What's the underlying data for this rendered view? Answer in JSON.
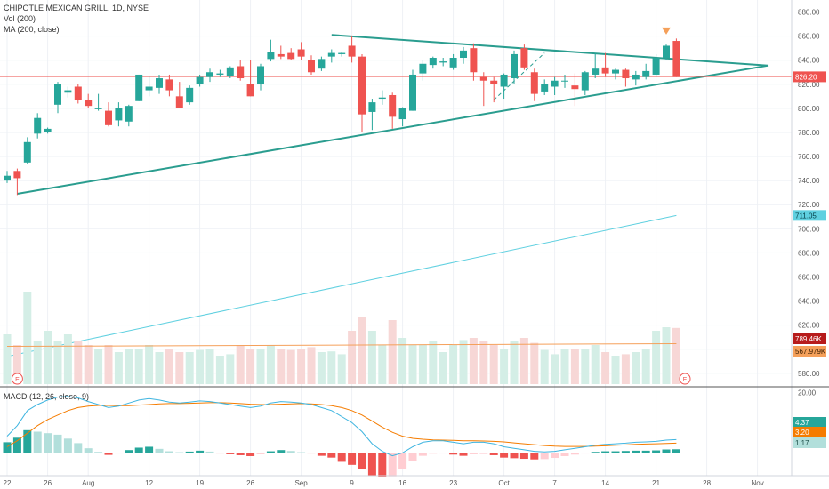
{
  "legend": {
    "title": "CHIPOTLE MEXICAN GRILL, 1D, NYSE",
    "volume": "Vol (200)",
    "ma": "MA (200, close)"
  },
  "macd": {
    "label": "MACD (12, 26, close, 9)",
    "values": {
      "macd": "4.37",
      "signal": "3.20",
      "hist": "1.17"
    }
  },
  "badges": {
    "last_price": "826.20",
    "ma_value": "711.05",
    "volume": "789.46K",
    "volume_ma": "567.979K"
  },
  "earnings_markers": [
    "E",
    "E"
  ],
  "colors": {
    "up": "#26a69a",
    "down": "#ef5350",
    "up_vol": "#d4eee6",
    "down_vol": "#f7d7d6",
    "ma": "#5fd0e0",
    "vol_ma": "#f5a05a",
    "trend": "#2a9d8f",
    "macd_line": "#3fb5e0",
    "signal_line": "#f57c00",
    "price_line": "#ef5350",
    "grid": "#eef1f5"
  },
  "chart_data": [
    {
      "type": "candlestick",
      "title": "CHIPOTLE MEXICAN GRILL, 1D, NYSE",
      "y_ticks": [
        "880.00",
        "860.00",
        "840.00",
        "820.00",
        "800.00",
        "780.00",
        "760.00",
        "740.00",
        "720.00",
        "700.00",
        "680.00",
        "660.00",
        "640.00",
        "620.00",
        "600.00",
        "580.00"
      ],
      "ylim": [
        571,
        890
      ],
      "x_ticks": [
        "22",
        "26",
        "Aug",
        "12",
        "19",
        "26",
        "Sep",
        "9",
        "16",
        "23",
        "Oct",
        "7",
        "14",
        "21",
        "28",
        "Nov"
      ],
      "x_tick_index": [
        0,
        4,
        8,
        14,
        19,
        24,
        29,
        34,
        39,
        44,
        49,
        54,
        59,
        64,
        69,
        74
      ],
      "candles": [
        [
          740,
          748,
          738,
          744
        ],
        [
          748,
          750,
          728,
          742
        ],
        [
          755,
          776,
          754,
          772
        ],
        [
          779,
          796,
          775,
          792
        ],
        [
          780,
          784,
          779,
          783
        ],
        [
          803,
          822,
          796,
          820
        ],
        [
          813,
          818,
          809,
          815
        ],
        [
          818,
          820,
          804,
          807
        ],
        [
          807,
          812,
          800,
          802
        ],
        [
          800,
          812,
          798,
          800
        ],
        [
          798,
          805,
          785,
          786
        ],
        [
          790,
          805,
          785,
          800
        ],
        [
          789,
          803,
          785,
          802
        ],
        [
          806,
          828,
          806,
          828
        ],
        [
          815,
          827,
          810,
          818
        ],
        [
          817,
          828,
          812,
          825
        ],
        [
          824,
          828,
          810,
          815
        ],
        [
          810,
          822,
          800,
          800
        ],
        [
          805,
          819,
          803,
          817
        ],
        [
          820,
          828,
          818,
          826
        ],
        [
          826,
          833,
          822,
          830
        ],
        [
          828,
          832,
          826,
          829
        ],
        [
          827,
          835,
          825,
          834
        ],
        [
          835,
          840,
          823,
          825
        ],
        [
          820,
          840,
          810,
          810
        ],
        [
          820,
          837,
          815,
          835
        ],
        [
          841,
          857,
          839,
          847
        ],
        [
          845,
          852,
          841,
          843
        ],
        [
          846,
          850,
          840,
          841
        ],
        [
          849,
          855,
          840,
          843
        ],
        [
          840,
          844,
          828,
          830
        ],
        [
          833,
          843,
          831,
          841
        ],
        [
          843,
          849,
          838,
          846
        ],
        [
          845,
          847,
          843,
          846
        ],
        [
          852,
          860,
          838,
          843
        ],
        [
          843,
          845,
          780,
          795
        ],
        [
          797,
          808,
          782,
          805
        ],
        [
          808,
          815,
          803,
          809
        ],
        [
          811,
          813,
          783,
          793
        ],
        [
          791,
          801,
          785,
          800
        ],
        [
          798,
          832,
          798,
          828
        ],
        [
          829,
          840,
          823,
          837
        ],
        [
          836,
          843,
          833,
          842
        ],
        [
          838,
          842,
          835,
          839
        ],
        [
          834,
          845,
          832,
          842
        ],
        [
          842,
          851,
          837,
          848
        ],
        [
          850,
          854,
          823,
          830
        ],
        [
          826,
          830,
          802,
          823
        ],
        [
          823,
          826,
          805,
          820
        ],
        [
          818,
          829,
          808,
          828
        ],
        [
          825,
          848,
          820,
          845
        ],
        [
          850,
          853,
          832,
          834
        ],
        [
          830,
          833,
          806,
          812
        ],
        [
          814,
          824,
          811,
          820
        ],
        [
          818,
          826,
          811,
          823
        ],
        [
          823,
          828,
          817,
          823
        ],
        [
          819,
          829,
          802,
          816
        ],
        [
          815,
          831,
          811,
          830
        ],
        [
          828,
          846,
          825,
          833
        ],
        [
          834,
          846,
          826,
          829
        ],
        [
          829,
          833,
          824,
          832
        ],
        [
          832,
          833,
          818,
          825
        ],
        [
          824,
          831,
          819,
          828
        ],
        [
          826,
          837,
          824,
          831
        ],
        [
          828,
          845,
          826,
          842
        ],
        [
          842,
          853,
          840,
          852
        ],
        [
          856,
          858,
          826,
          826
        ]
      ]
    },
    {
      "type": "line",
      "name": "MA (200, close)",
      "start_value": 594,
      "end_value": 711.05
    },
    {
      "type": "bar",
      "name": "Vol (200)",
      "values": [
        0.7,
        0.55,
        1.3,
        0.6,
        0.75,
        0.6,
        0.7,
        0.6,
        0.55,
        0.5,
        0.55,
        0.45,
        0.5,
        0.5,
        0.55,
        0.45,
        0.5,
        0.45,
        0.45,
        0.48,
        0.5,
        0.4,
        0.42,
        0.55,
        0.5,
        0.5,
        0.55,
        0.5,
        0.48,
        0.5,
        0.52,
        0.45,
        0.46,
        0.42,
        0.75,
        0.95,
        0.75,
        0.55,
        0.9,
        0.65,
        0.55,
        0.55,
        0.6,
        0.45,
        0.55,
        0.62,
        0.65,
        0.6,
        0.55,
        0.5,
        0.6,
        0.65,
        0.58,
        0.48,
        0.42,
        0.5,
        0.5,
        0.5,
        0.55,
        0.45,
        0.4,
        0.42,
        0.45,
        0.5,
        0.75,
        0.8,
        0.79
      ],
      "ma": 0.568
    },
    {
      "type": "macd",
      "ylim": [
        -7,
        21
      ],
      "y_ticks": [
        "20.00"
      ],
      "macd": [
        5.5,
        9,
        14,
        16,
        17.5,
        18.5,
        18.7,
        18.2,
        17,
        16,
        15,
        15.5,
        16.5,
        17.5,
        18,
        17.5,
        16.8,
        16.5,
        16.8,
        17.2,
        17,
        16.5,
        16,
        15.5,
        15,
        15.5,
        16.5,
        17,
        16.8,
        16.5,
        16,
        15,
        14,
        12,
        10,
        7,
        3,
        0.5,
        -1,
        0,
        2,
        3.5,
        4,
        4,
        3.5,
        3,
        3.5,
        3.5,
        3,
        2,
        1.5,
        1,
        0.5,
        0.3,
        0.5,
        1,
        1.5,
        2,
        2.5,
        2.8,
        3,
        3.2,
        3.5,
        3.6,
        3.8,
        4.2,
        4.37
      ],
      "signal": [
        2,
        4,
        6.5,
        9,
        11,
        12.5,
        14,
        15,
        15.5,
        15.7,
        15.7,
        15.6,
        15.6,
        15.8,
        16,
        16.2,
        16.3,
        16.3,
        16.4,
        16.5,
        16.6,
        16.6,
        16.5,
        16.3,
        16.1,
        16,
        16,
        16.1,
        16.2,
        16.3,
        16.2,
        16,
        15.6,
        15,
        14,
        12.5,
        10.5,
        8.5,
        6.8,
        5.5,
        4.8,
        4.5,
        4.3,
        4.2,
        4.1,
        4,
        4,
        3.9,
        3.8,
        3.6,
        3.3,
        3,
        2.7,
        2.4,
        2.2,
        2.1,
        2.1,
        2.1,
        2.2,
        2.3,
        2.5,
        2.6,
        2.8,
        2.9,
        3,
        3.1,
        3.2
      ],
      "hist": [
        3.5,
        5,
        7.5,
        7,
        6.5,
        6,
        4.7,
        3.2,
        1.5,
        0.3,
        -0.7,
        -0.1,
        0.9,
        1.7,
        2,
        1.3,
        0.5,
        0.2,
        0.4,
        0.7,
        0.4,
        -0.1,
        -0.5,
        -0.8,
        -1.1,
        -0.5,
        0.5,
        0.9,
        0.6,
        0.2,
        -0.2,
        -1,
        -1.6,
        -3,
        -4,
        -5.5,
        -7.5,
        -8,
        -7.8,
        -5.5,
        -2.8,
        -1,
        -0.3,
        -0.2,
        -0.6,
        -1,
        -0.5,
        -0.4,
        -0.8,
        -1.6,
        -1.8,
        -2,
        -2.2,
        -2.1,
        -1.7,
        -1.1,
        -0.6,
        -0.1,
        0.3,
        0.5,
        0.5,
        0.6,
        0.7,
        0.7,
        0.8,
        1.1,
        1.17
      ]
    }
  ]
}
